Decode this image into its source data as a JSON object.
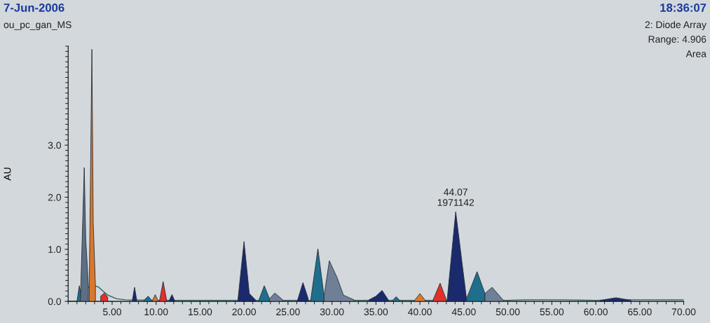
{
  "chart_data": {
    "type": "area",
    "ylabel": "AU",
    "xlim": [
      0,
      70
    ],
    "ylim": [
      0,
      4.9
    ],
    "xticks": [
      {
        "value": 5,
        "label": "5.00"
      },
      {
        "value": 10,
        "label": "10.00"
      },
      {
        "value": 15,
        "label": "15.00"
      },
      {
        "value": 20,
        "label": "20.00"
      },
      {
        "value": 25,
        "label": "25.00"
      },
      {
        "value": 30,
        "label": "30.00"
      },
      {
        "value": 35,
        "label": "35.00"
      },
      {
        "value": 40,
        "label": "40.00"
      },
      {
        "value": 45,
        "label": "45.00"
      },
      {
        "value": 50,
        "label": "50.00"
      },
      {
        "value": 55,
        "label": "55.00"
      },
      {
        "value": 60,
        "label": "60.00"
      },
      {
        "value": 65,
        "label": "65.00"
      },
      {
        "value": 70,
        "label": "70.00"
      }
    ],
    "yticks": [
      {
        "value": 0,
        "label": "0.0"
      },
      {
        "value": 1,
        "label": "1.0"
      },
      {
        "value": 2,
        "label": "2.0"
      },
      {
        "value": 3,
        "label": "3.0"
      }
    ],
    "grid": false,
    "annotations": [
      "7-Jun-2006",
      "ou_pc_gan_MS",
      "18:36:07",
      "2: Diode Array",
      "Range: 4.906",
      "Area",
      {
        "text": "44.07\n1971142",
        "x": 44.07,
        "y": 1.72
      }
    ],
    "series": [
      {
        "type": "line",
        "color": "#2c5e5e",
        "x": [
          0,
          1.0,
          1.5,
          2.2,
          2.6,
          3.0,
          3.4,
          4.5,
          5.5,
          6.5,
          10,
          20,
          30,
          40,
          50,
          52,
          56,
          60,
          64,
          70
        ],
        "values": [
          0,
          0,
          0.05,
          0.25,
          0.3,
          0.3,
          0.28,
          0.12,
          0.05,
          0.03,
          0.02,
          0.02,
          0.02,
          0.02,
          0.02,
          0.03,
          0.03,
          0.02,
          0.03,
          0.03
        ]
      },
      {
        "color": "#1f6e8c",
        "x": [
          1.0,
          1.27,
          1.5
        ],
        "values": [
          0,
          0.3,
          0.1
        ]
      },
      {
        "color": "#5d6f86",
        "x": [
          1.4,
          1.83,
          2.0,
          2.3
        ],
        "values": [
          0.05,
          2.57,
          1.2,
          0.3
        ]
      },
      {
        "color": "#d9782d",
        "x": [
          2.4,
          2.7,
          2.85,
          3.1
        ],
        "values": [
          0.3,
          4.84,
          1.5,
          0.3
        ]
      },
      {
        "color": "#e0302a",
        "x": [
          3.7,
          4.1,
          4.5
        ],
        "values": [
          0.1,
          0.16,
          0.08
        ]
      },
      {
        "color": "#1a2a6c",
        "x": [
          7.3,
          7.55,
          7.8
        ],
        "values": [
          0.02,
          0.27,
          0.02
        ]
      },
      {
        "color": "#1f6e8c",
        "x": [
          8.6,
          9.1,
          9.5
        ],
        "values": [
          0.02,
          0.1,
          0.02
        ]
      },
      {
        "color": "#d9782d",
        "x": [
          9.6,
          9.9,
          10.2
        ],
        "values": [
          0.02,
          0.13,
          0.02
        ]
      },
      {
        "color": "#e0302a",
        "x": [
          10.4,
          10.8,
          11.2
        ],
        "values": [
          0.02,
          0.38,
          0.02
        ]
      },
      {
        "color": "#1a2a6c",
        "x": [
          11.5,
          11.8,
          12.1
        ],
        "values": [
          0.02,
          0.13,
          0.02
        ]
      },
      {
        "color": "#1a2a6c",
        "x": [
          19.3,
          20.0,
          20.6,
          21.3
        ],
        "values": [
          0.02,
          1.15,
          0.15,
          0.03
        ]
      },
      {
        "color": "#1f6e8c",
        "x": [
          21.7,
          22.3,
          22.9
        ],
        "values": [
          0.03,
          0.3,
          0.05
        ]
      },
      {
        "color": "#6f7f96",
        "x": [
          22.9,
          23.5,
          24.4
        ],
        "values": [
          0.05,
          0.16,
          0.03
        ]
      },
      {
        "color": "#1a2a6c",
        "x": [
          26.1,
          26.7,
          27.3
        ],
        "values": [
          0.03,
          0.36,
          0.05
        ]
      },
      {
        "color": "#1f6e8c",
        "x": [
          27.6,
          28.4,
          29.1
        ],
        "values": [
          0.05,
          1.01,
          0.1
        ]
      },
      {
        "color": "#6f7f96",
        "x": [
          29.1,
          29.7,
          30.6,
          31.3,
          32.5
        ],
        "values": [
          0.1,
          0.78,
          0.45,
          0.12,
          0.03
        ]
      },
      {
        "color": "#1a2a6c",
        "x": [
          34.2,
          35.0,
          35.7,
          36.4
        ],
        "values": [
          0.03,
          0.1,
          0.21,
          0.03
        ]
      },
      {
        "color": "#1f6e8c",
        "x": [
          36.9,
          37.3,
          37.7
        ],
        "values": [
          0.02,
          0.09,
          0.02
        ]
      },
      {
        "color": "#d9782d",
        "x": [
          39.4,
          40.0,
          40.6
        ],
        "values": [
          0.02,
          0.15,
          0.02
        ]
      },
      {
        "color": "#e0302a",
        "x": [
          41.5,
          42.3,
          43.0
        ],
        "values": [
          0.03,
          0.35,
          0.03
        ]
      },
      {
        "color": "#1a2a6c",
        "x": [
          43.1,
          44.07,
          45.3
        ],
        "values": [
          0.03,
          1.72,
          0.05
        ]
      },
      {
        "color": "#1f6e8c",
        "x": [
          45.3,
          46.5,
          47.4
        ],
        "values": [
          0.05,
          0.57,
          0.15
        ]
      },
      {
        "color": "#6f7f96",
        "x": [
          47.4,
          48.2,
          49.5
        ],
        "values": [
          0.15,
          0.27,
          0.02
        ]
      },
      {
        "color": "#1a2a6c",
        "x": [
          60.5,
          62.3,
          64.0
        ],
        "values": [
          0.02,
          0.07,
          0.02
        ]
      }
    ]
  }
}
